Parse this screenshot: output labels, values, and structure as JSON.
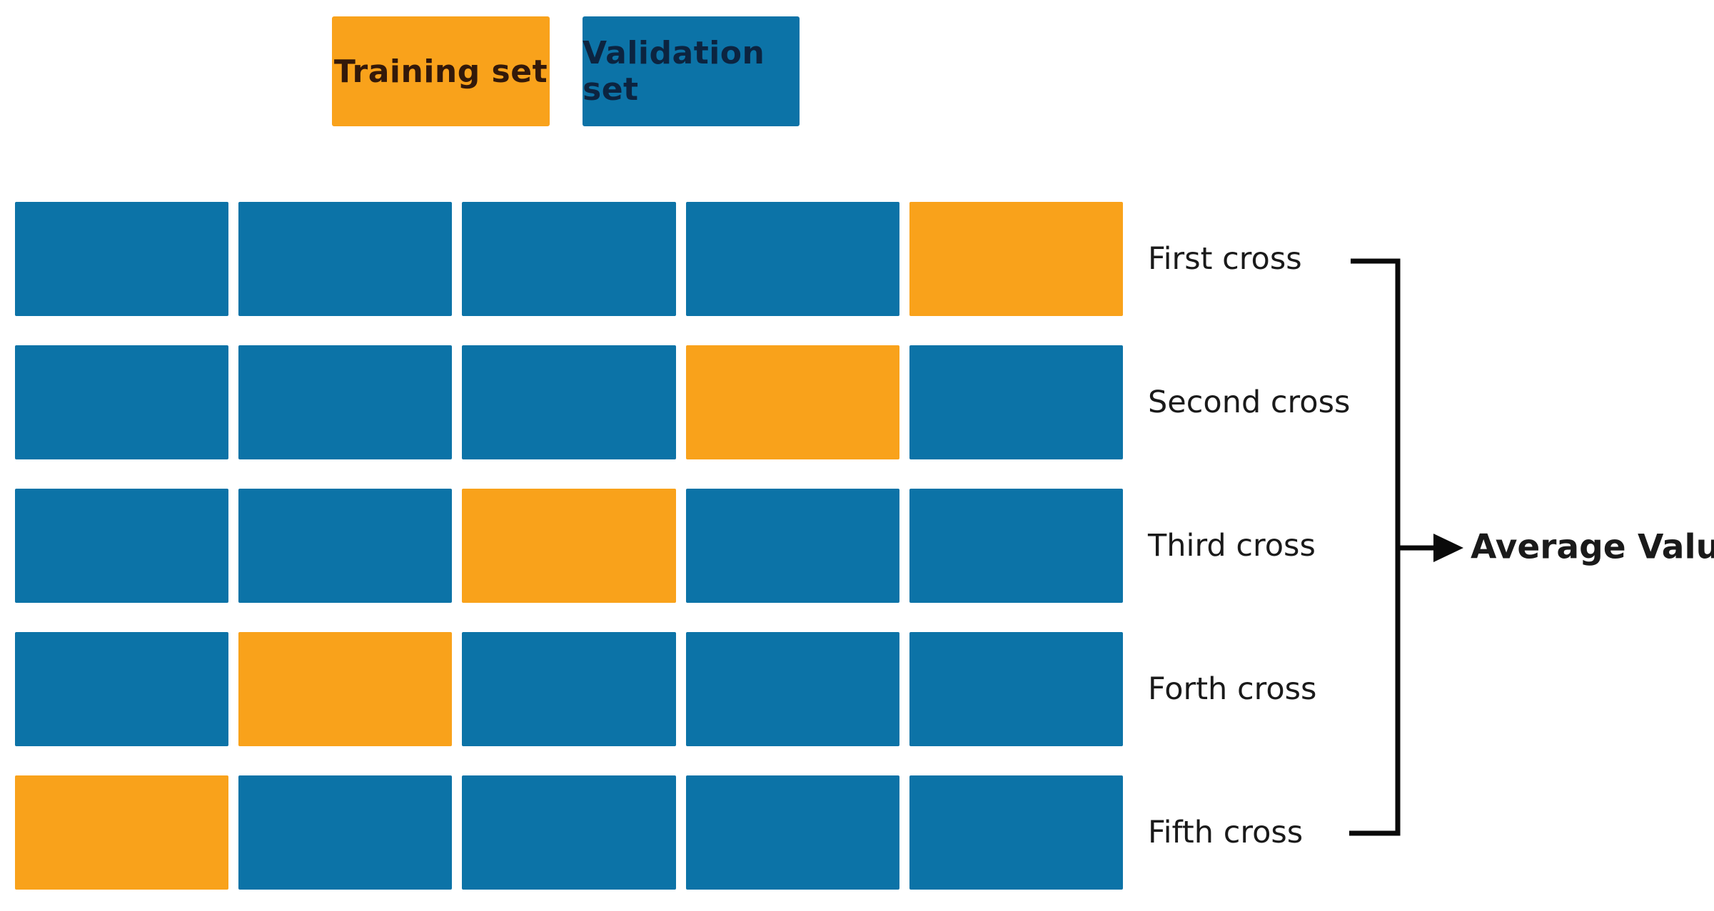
{
  "colors": {
    "training": "#F9A21B",
    "validation": "#0C73A7",
    "line": "#0A0A0A",
    "label_text": "#1A1A1A",
    "legend_training_text": "#33190A",
    "legend_validation_text": "#0C2440"
  },
  "legend": {
    "training_label": "Training set",
    "validation_label": "Validation set"
  },
  "grid": {
    "columns": 5,
    "rows": [
      {
        "label": "First cross",
        "blocks": [
          "validation",
          "validation",
          "validation",
          "validation",
          "training"
        ]
      },
      {
        "label": "Second cross",
        "blocks": [
          "validation",
          "validation",
          "validation",
          "training",
          "validation"
        ]
      },
      {
        "label": "Third cross",
        "blocks": [
          "validation",
          "validation",
          "training",
          "validation",
          "validation"
        ]
      },
      {
        "label": "Forth cross",
        "blocks": [
          "validation",
          "training",
          "validation",
          "validation",
          "validation"
        ]
      },
      {
        "label": "Fifth cross",
        "blocks": [
          "training",
          "validation",
          "validation",
          "validation",
          "validation"
        ]
      }
    ]
  },
  "bracket": {
    "average_label": "Average Value"
  }
}
